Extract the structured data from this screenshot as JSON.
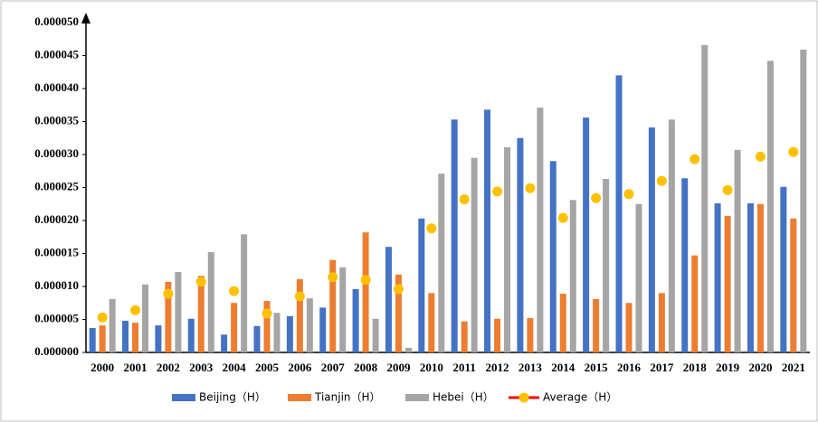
{
  "chart_data": {
    "type": "bar",
    "categories": [
      "2000",
      "2001",
      "2002",
      "2003",
      "2004",
      "2005",
      "2006",
      "2007",
      "2008",
      "2009",
      "2010",
      "2011",
      "2012",
      "2013",
      "2014",
      "2015",
      "2016",
      "2017",
      "2018",
      "2019",
      "2020",
      "2021"
    ],
    "series": [
      {
        "name": "Beijing（H）",
        "color": "#4472c4",
        "values": [
          3.7e-06,
          4.8e-06,
          4.1e-06,
          5.1e-06,
          2.7e-06,
          4e-06,
          5.5e-06,
          6.8e-06,
          9.6e-06,
          1.6e-05,
          2.03e-05,
          3.53e-05,
          3.68e-05,
          3.25e-05,
          2.9e-05,
          3.56e-05,
          4.2e-05,
          3.41e-05,
          2.64e-05,
          2.26e-05,
          2.26e-05,
          2.51e-05
        ]
      },
      {
        "name": "Tianjin（H）",
        "color": "#ed7d31",
        "values": [
          4.1e-06,
          4.5e-06,
          1.07e-05,
          1.16e-05,
          7.5e-06,
          7.8e-06,
          1.11e-05,
          1.4e-05,
          1.82e-05,
          1.18e-05,
          9e-06,
          4.7e-06,
          5.1e-06,
          5.2e-06,
          8.9e-06,
          8.1e-06,
          7.5e-06,
          9e-06,
          1.47e-05,
          2.07e-05,
          2.25e-05,
          2.03e-05
        ]
      },
      {
        "name": "Hebei（H）",
        "color": "#a5a5a5",
        "values": [
          8.1e-06,
          1.03e-05,
          1.22e-05,
          1.52e-05,
          1.79e-05,
          6e-06,
          8.2e-06,
          1.29e-05,
          5.1e-06,
          7e-07,
          2.71e-05,
          2.95e-05,
          3.11e-05,
          3.71e-05,
          2.31e-05,
          2.63e-05,
          2.25e-05,
          3.53e-05,
          4.66e-05,
          3.07e-05,
          4.42e-05,
          4.59e-05
        ]
      },
      {
        "name": "Average（H）",
        "type": "line",
        "color": "#ff0000",
        "marker_color": "#ffc000",
        "values": [
          5.3e-06,
          6.4e-06,
          8.9e-06,
          1.07e-05,
          9.3e-06,
          5.9e-06,
          8.5e-06,
          1.14e-05,
          1.1e-05,
          9.6e-06,
          1.88e-05,
          2.32e-05,
          2.44e-05,
          2.49e-05,
          2.04e-05,
          2.34e-05,
          2.4e-05,
          2.6e-05,
          2.93e-05,
          2.46e-05,
          2.97e-05,
          3.04e-05
        ]
      }
    ],
    "ylim": [
      0,
      5e-05
    ],
    "yticks": [
      {
        "value": 0,
        "label": "0.000000"
      },
      {
        "value": 5e-06,
        "label": "0.000005"
      },
      {
        "value": 1e-05,
        "label": "0.000010"
      },
      {
        "value": 1.5e-05,
        "label": "0.000015"
      },
      {
        "value": 2e-05,
        "label": "0.000020"
      },
      {
        "value": 2.5e-05,
        "label": "0.000025"
      },
      {
        "value": 3e-05,
        "label": "0.000030"
      },
      {
        "value": 3.5e-05,
        "label": "0.000035"
      },
      {
        "value": 4e-05,
        "label": "0.000040"
      },
      {
        "value": 4.5e-05,
        "label": "0.000045"
      },
      {
        "value": 5e-05,
        "label": "0.000050"
      }
    ],
    "grid": false,
    "legend": "bottom"
  }
}
